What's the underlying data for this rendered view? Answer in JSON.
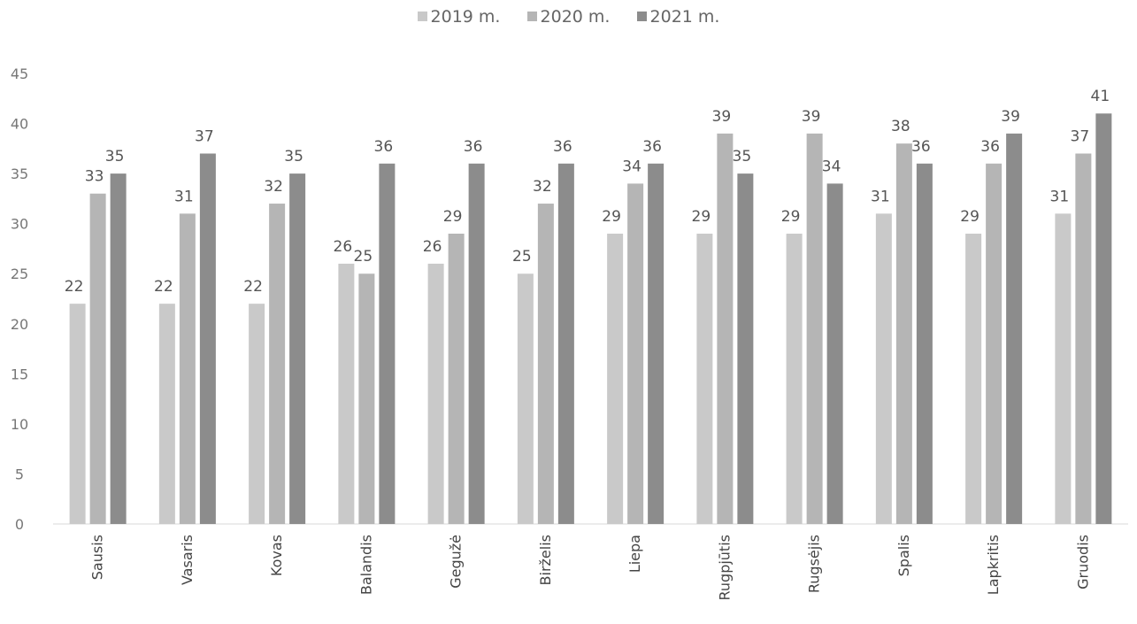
{
  "chart_data": {
    "type": "bar",
    "title": "",
    "xlabel": "",
    "ylabel": "",
    "categories": [
      "Sausis",
      "Vasaris",
      "Kovas",
      "Balandis",
      "Gegužė",
      "Birželis",
      "Liepa",
      "Rugpjūtis",
      "Rugsėjis",
      "Spalis",
      "Lapkritis",
      "Gruodis"
    ],
    "series": [
      {
        "name": "2019 m.",
        "color": "#c9c9c9",
        "values": [
          22,
          22,
          22,
          26,
          26,
          25,
          29,
          29,
          29,
          31,
          29,
          31
        ]
      },
      {
        "name": "2020 m.",
        "color": "#b5b5b5",
        "values": [
          33,
          31,
          32,
          25,
          29,
          32,
          34,
          39,
          39,
          38,
          36,
          37
        ]
      },
      {
        "name": "2021 m.",
        "color": "#8c8c8c",
        "values": [
          35,
          37,
          35,
          36,
          36,
          36,
          36,
          35,
          34,
          36,
          39,
          41
        ]
      }
    ],
    "ylim": [
      0,
      45
    ],
    "yticks": [
      0,
      5,
      10,
      15,
      20,
      25,
      30,
      35,
      40,
      45
    ],
    "legend_position": "top-center",
    "grid": false,
    "data_labels": true
  }
}
